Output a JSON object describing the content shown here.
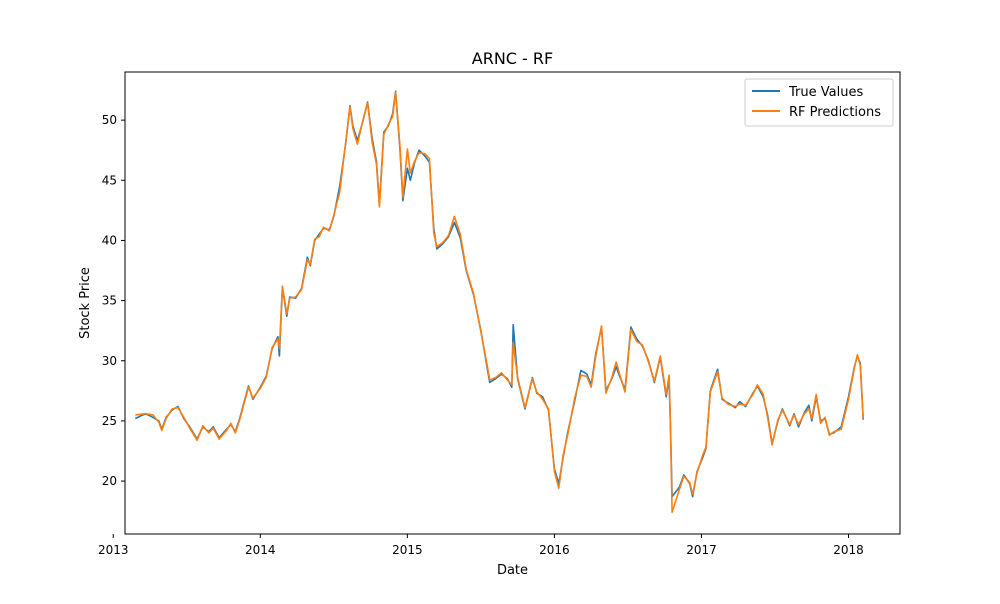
{
  "chart_data": {
    "type": "line",
    "title": "ARNC - RF",
    "xlabel": "Date",
    "ylabel": "Stock Price",
    "xlim": [
      2013.08,
      2018.35
    ],
    "ylim": [
      15.6,
      54.0
    ],
    "x_ticks": [
      {
        "value": 2013,
        "label": "2013"
      },
      {
        "value": 2014,
        "label": "2014"
      },
      {
        "value": 2015,
        "label": "2015"
      },
      {
        "value": 2016,
        "label": "2016"
      },
      {
        "value": 2017,
        "label": "2017"
      },
      {
        "value": 2018,
        "label": "2018"
      }
    ],
    "y_ticks": [
      {
        "value": 20,
        "label": "20"
      },
      {
        "value": 25,
        "label": "25"
      },
      {
        "value": 30,
        "label": "30"
      },
      {
        "value": 35,
        "label": "35"
      },
      {
        "value": 40,
        "label": "40"
      },
      {
        "value": 45,
        "label": "45"
      },
      {
        "value": 50,
        "label": "50"
      }
    ],
    "grid": false,
    "legend": "upper-right",
    "series": [
      {
        "name": "True Values",
        "color": "#1f77b4",
        "points": [
          [
            2013.15,
            25.2
          ],
          [
            2013.22,
            25.6
          ],
          [
            2013.27,
            25.3
          ],
          [
            2013.31,
            25.0
          ],
          [
            2013.33,
            24.3
          ],
          [
            2013.36,
            25.3
          ],
          [
            2013.4,
            25.9
          ],
          [
            2013.44,
            26.2
          ],
          [
            2013.48,
            25.2
          ],
          [
            2013.52,
            24.5
          ],
          [
            2013.57,
            23.5
          ],
          [
            2013.61,
            24.5
          ],
          [
            2013.65,
            24.1
          ],
          [
            2013.68,
            24.5
          ],
          [
            2013.72,
            23.6
          ],
          [
            2013.77,
            24.3
          ],
          [
            2013.8,
            24.7
          ],
          [
            2013.83,
            24.1
          ],
          [
            2013.86,
            25.2
          ],
          [
            2013.92,
            27.9
          ],
          [
            2013.95,
            26.8
          ],
          [
            2014.0,
            27.8
          ],
          [
            2014.04,
            28.7
          ],
          [
            2014.08,
            31.0
          ],
          [
            2014.12,
            32.0
          ],
          [
            2014.13,
            30.4
          ],
          [
            2014.15,
            36.1
          ],
          [
            2014.18,
            33.7
          ],
          [
            2014.2,
            35.3
          ],
          [
            2014.24,
            35.2
          ],
          [
            2014.28,
            36.0
          ],
          [
            2014.32,
            38.6
          ],
          [
            2014.34,
            37.9
          ],
          [
            2014.37,
            40.0
          ],
          [
            2014.4,
            40.5
          ],
          [
            2014.43,
            41.0
          ],
          [
            2014.47,
            40.9
          ],
          [
            2014.5,
            42.0
          ],
          [
            2014.54,
            44.5
          ],
          [
            2014.58,
            48.0
          ],
          [
            2014.61,
            51.2
          ],
          [
            2014.63,
            49.5
          ],
          [
            2014.66,
            48.3
          ],
          [
            2014.7,
            50.0
          ],
          [
            2014.73,
            51.5
          ],
          [
            2014.76,
            48.5
          ],
          [
            2014.79,
            46.5
          ],
          [
            2014.81,
            43.0
          ],
          [
            2014.84,
            49.0
          ],
          [
            2014.87,
            49.5
          ],
          [
            2014.9,
            50.5
          ],
          [
            2014.92,
            52.4
          ],
          [
            2014.95,
            47.5
          ],
          [
            2014.97,
            43.3
          ],
          [
            2015.0,
            46.0
          ],
          [
            2015.02,
            45.0
          ],
          [
            2015.05,
            46.5
          ],
          [
            2015.08,
            47.5
          ],
          [
            2015.12,
            47.0
          ],
          [
            2015.15,
            46.5
          ],
          [
            2015.18,
            41.0
          ],
          [
            2015.2,
            39.3
          ],
          [
            2015.24,
            39.7
          ],
          [
            2015.28,
            40.3
          ],
          [
            2015.32,
            41.5
          ],
          [
            2015.36,
            40.2
          ],
          [
            2015.4,
            37.5
          ],
          [
            2015.45,
            35.5
          ],
          [
            2015.5,
            32.5
          ],
          [
            2015.54,
            29.6
          ],
          [
            2015.56,
            28.2
          ],
          [
            2015.6,
            28.5
          ],
          [
            2015.64,
            28.9
          ],
          [
            2015.68,
            28.5
          ],
          [
            2015.71,
            27.8
          ],
          [
            2015.72,
            33.0
          ],
          [
            2015.75,
            28.5
          ],
          [
            2015.8,
            26.0
          ],
          [
            2015.85,
            28.6
          ],
          [
            2015.88,
            27.3
          ],
          [
            2015.92,
            27.0
          ],
          [
            2015.96,
            25.9
          ],
          [
            2016.0,
            21.0
          ],
          [
            2016.03,
            19.8
          ],
          [
            2016.06,
            22.0
          ],
          [
            2016.09,
            24.0
          ],
          [
            2016.14,
            26.8
          ],
          [
            2016.18,
            29.2
          ],
          [
            2016.22,
            28.9
          ],
          [
            2016.25,
            28.0
          ],
          [
            2016.28,
            30.5
          ],
          [
            2016.32,
            32.8
          ],
          [
            2016.35,
            27.5
          ],
          [
            2016.39,
            28.5
          ],
          [
            2016.42,
            29.5
          ],
          [
            2016.45,
            28.5
          ],
          [
            2016.48,
            27.6
          ],
          [
            2016.52,
            32.8
          ],
          [
            2016.56,
            31.8
          ],
          [
            2016.6,
            31.2
          ],
          [
            2016.64,
            30.0
          ],
          [
            2016.68,
            28.2
          ],
          [
            2016.72,
            30.3
          ],
          [
            2016.76,
            27.0
          ],
          [
            2016.78,
            28.5
          ],
          [
            2016.79,
            24.0
          ],
          [
            2016.8,
            18.7
          ],
          [
            2016.85,
            19.5
          ],
          [
            2016.88,
            20.5
          ],
          [
            2016.92,
            19.8
          ],
          [
            2016.94,
            18.7
          ],
          [
            2016.97,
            20.8
          ],
          [
            2017.01,
            22.0
          ],
          [
            2017.03,
            22.7
          ],
          [
            2017.06,
            27.5
          ],
          [
            2017.11,
            29.3
          ],
          [
            2017.14,
            26.8
          ],
          [
            2017.18,
            26.5
          ],
          [
            2017.23,
            26.1
          ],
          [
            2017.26,
            26.6
          ],
          [
            2017.3,
            26.2
          ],
          [
            2017.35,
            27.3
          ],
          [
            2017.38,
            27.9
          ],
          [
            2017.42,
            27.0
          ],
          [
            2017.45,
            25.5
          ],
          [
            2017.48,
            23.1
          ],
          [
            2017.52,
            25.0
          ],
          [
            2017.55,
            26.0
          ],
          [
            2017.6,
            24.6
          ],
          [
            2017.63,
            25.6
          ],
          [
            2017.66,
            24.5
          ],
          [
            2017.7,
            25.7
          ],
          [
            2017.73,
            26.3
          ],
          [
            2017.75,
            25.0
          ],
          [
            2017.78,
            27.0
          ],
          [
            2017.81,
            25.0
          ],
          [
            2017.84,
            25.2
          ],
          [
            2017.87,
            23.9
          ],
          [
            2017.9,
            24.0
          ],
          [
            2017.95,
            24.5
          ],
          [
            2018.0,
            27.0
          ],
          [
            2018.04,
            29.5
          ],
          [
            2018.06,
            30.4
          ],
          [
            2018.08,
            29.8
          ],
          [
            2018.1,
            25.1
          ]
        ]
      },
      {
        "name": "RF Predictions",
        "color": "#ff7f0e",
        "points": [
          [
            2013.15,
            25.5
          ],
          [
            2013.22,
            25.6
          ],
          [
            2013.27,
            25.5
          ],
          [
            2013.31,
            24.9
          ],
          [
            2013.33,
            24.2
          ],
          [
            2013.36,
            25.2
          ],
          [
            2013.4,
            26.0
          ],
          [
            2013.44,
            26.1
          ],
          [
            2013.48,
            25.3
          ],
          [
            2013.52,
            24.4
          ],
          [
            2013.57,
            23.4
          ],
          [
            2013.61,
            24.6
          ],
          [
            2013.65,
            24.0
          ],
          [
            2013.68,
            24.4
          ],
          [
            2013.72,
            23.5
          ],
          [
            2013.77,
            24.2
          ],
          [
            2013.8,
            24.8
          ],
          [
            2013.83,
            24.0
          ],
          [
            2013.86,
            25.1
          ],
          [
            2013.92,
            27.8
          ],
          [
            2013.95,
            26.9
          ],
          [
            2014.0,
            27.7
          ],
          [
            2014.04,
            28.6
          ],
          [
            2014.08,
            31.1
          ],
          [
            2014.12,
            31.8
          ],
          [
            2014.13,
            31.0
          ],
          [
            2014.15,
            36.2
          ],
          [
            2014.18,
            33.9
          ],
          [
            2014.2,
            35.2
          ],
          [
            2014.24,
            35.3
          ],
          [
            2014.28,
            35.9
          ],
          [
            2014.32,
            38.4
          ],
          [
            2014.34,
            38.0
          ],
          [
            2014.37,
            40.1
          ],
          [
            2014.4,
            40.3
          ],
          [
            2014.43,
            41.1
          ],
          [
            2014.47,
            40.8
          ],
          [
            2014.5,
            42.1
          ],
          [
            2014.54,
            44.0
          ],
          [
            2014.58,
            48.1
          ],
          [
            2014.61,
            51.1
          ],
          [
            2014.63,
            49.3
          ],
          [
            2014.66,
            48.0
          ],
          [
            2014.7,
            50.1
          ],
          [
            2014.73,
            51.4
          ],
          [
            2014.76,
            48.2
          ],
          [
            2014.79,
            46.3
          ],
          [
            2014.81,
            42.8
          ],
          [
            2014.84,
            48.8
          ],
          [
            2014.87,
            49.6
          ],
          [
            2014.9,
            50.3
          ],
          [
            2014.92,
            52.3
          ],
          [
            2014.95,
            47.8
          ],
          [
            2014.97,
            43.6
          ],
          [
            2015.0,
            47.6
          ],
          [
            2015.02,
            45.6
          ],
          [
            2015.05,
            46.6
          ],
          [
            2015.08,
            47.3
          ],
          [
            2015.12,
            47.2
          ],
          [
            2015.15,
            46.8
          ],
          [
            2015.18,
            40.6
          ],
          [
            2015.2,
            39.5
          ],
          [
            2015.24,
            39.8
          ],
          [
            2015.28,
            40.4
          ],
          [
            2015.32,
            42.0
          ],
          [
            2015.36,
            40.5
          ],
          [
            2015.4,
            37.6
          ],
          [
            2015.45,
            35.6
          ],
          [
            2015.5,
            32.4
          ],
          [
            2015.54,
            29.8
          ],
          [
            2015.56,
            28.4
          ],
          [
            2015.6,
            28.6
          ],
          [
            2015.64,
            29.0
          ],
          [
            2015.68,
            28.4
          ],
          [
            2015.71,
            28.0
          ],
          [
            2015.72,
            31.5
          ],
          [
            2015.75,
            28.6
          ],
          [
            2015.8,
            26.1
          ],
          [
            2015.85,
            28.5
          ],
          [
            2015.88,
            27.4
          ],
          [
            2015.92,
            26.8
          ],
          [
            2015.96,
            26.0
          ],
          [
            2016.0,
            20.8
          ],
          [
            2016.03,
            19.4
          ],
          [
            2016.06,
            22.2
          ],
          [
            2016.09,
            23.8
          ],
          [
            2016.14,
            27.0
          ],
          [
            2016.18,
            28.8
          ],
          [
            2016.22,
            28.7
          ],
          [
            2016.25,
            27.8
          ],
          [
            2016.28,
            30.3
          ],
          [
            2016.32,
            32.9
          ],
          [
            2016.35,
            27.3
          ],
          [
            2016.39,
            28.6
          ],
          [
            2016.42,
            29.9
          ],
          [
            2016.45,
            28.6
          ],
          [
            2016.48,
            27.4
          ],
          [
            2016.52,
            32.6
          ],
          [
            2016.56,
            31.6
          ],
          [
            2016.6,
            31.3
          ],
          [
            2016.64,
            29.9
          ],
          [
            2016.68,
            28.3
          ],
          [
            2016.72,
            30.4
          ],
          [
            2016.76,
            27.2
          ],
          [
            2016.78,
            28.8
          ],
          [
            2016.79,
            24.2
          ],
          [
            2016.8,
            17.4
          ],
          [
            2016.85,
            19.3
          ],
          [
            2016.88,
            20.4
          ],
          [
            2016.92,
            19.9
          ],
          [
            2016.94,
            18.9
          ],
          [
            2016.97,
            20.7
          ],
          [
            2017.01,
            22.2
          ],
          [
            2017.03,
            22.8
          ],
          [
            2017.06,
            27.4
          ],
          [
            2017.11,
            29.1
          ],
          [
            2017.14,
            26.9
          ],
          [
            2017.18,
            26.4
          ],
          [
            2017.23,
            26.2
          ],
          [
            2017.26,
            26.4
          ],
          [
            2017.3,
            26.3
          ],
          [
            2017.35,
            27.2
          ],
          [
            2017.38,
            28.0
          ],
          [
            2017.42,
            27.2
          ],
          [
            2017.45,
            25.3
          ],
          [
            2017.48,
            23.0
          ],
          [
            2017.52,
            25.1
          ],
          [
            2017.55,
            25.9
          ],
          [
            2017.6,
            24.7
          ],
          [
            2017.63,
            25.5
          ],
          [
            2017.66,
            24.7
          ],
          [
            2017.7,
            25.6
          ],
          [
            2017.73,
            26.0
          ],
          [
            2017.75,
            25.2
          ],
          [
            2017.78,
            27.2
          ],
          [
            2017.81,
            24.8
          ],
          [
            2017.84,
            25.3
          ],
          [
            2017.87,
            23.8
          ],
          [
            2017.9,
            24.1
          ],
          [
            2017.95,
            24.3
          ],
          [
            2018.0,
            26.8
          ],
          [
            2018.04,
            29.4
          ],
          [
            2018.06,
            30.5
          ],
          [
            2018.08,
            29.6
          ],
          [
            2018.1,
            25.2
          ]
        ]
      }
    ]
  }
}
